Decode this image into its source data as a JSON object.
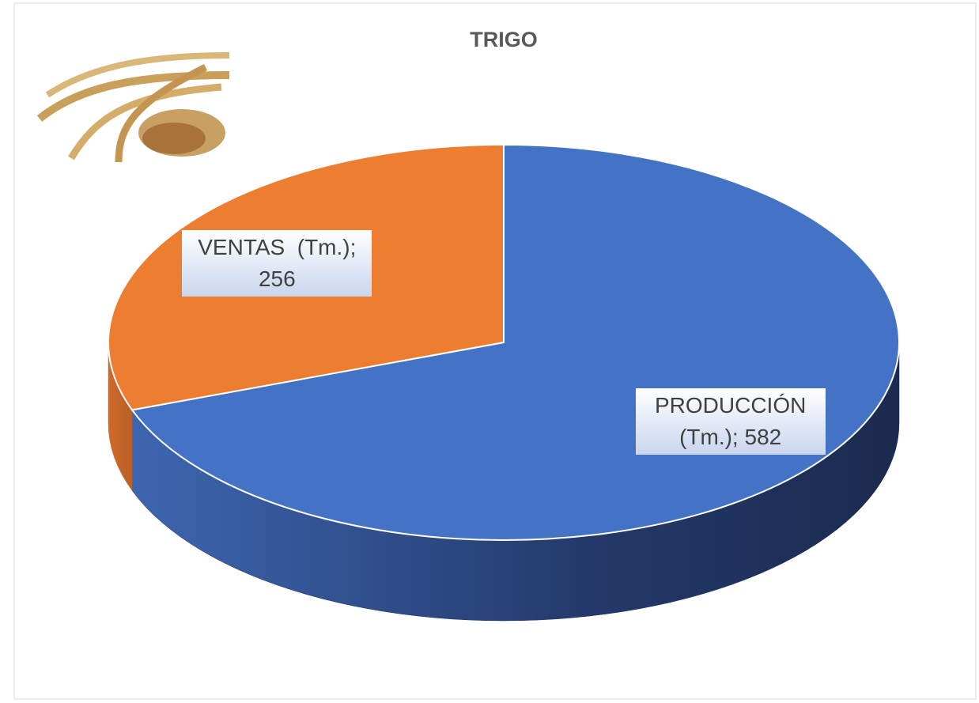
{
  "chart_data": {
    "type": "pie",
    "title": "TRIGO",
    "values": [
      582,
      256
    ],
    "value_labels": [
      "PRODUCCIÓN (Tm.); 582",
      "VENTAS  (Tm.); 256"
    ],
    "colors": [
      "#4472c4",
      "#ed7d31"
    ],
    "side_colors": [
      "#1e3158",
      "#c0652a"
    ]
  }
}
